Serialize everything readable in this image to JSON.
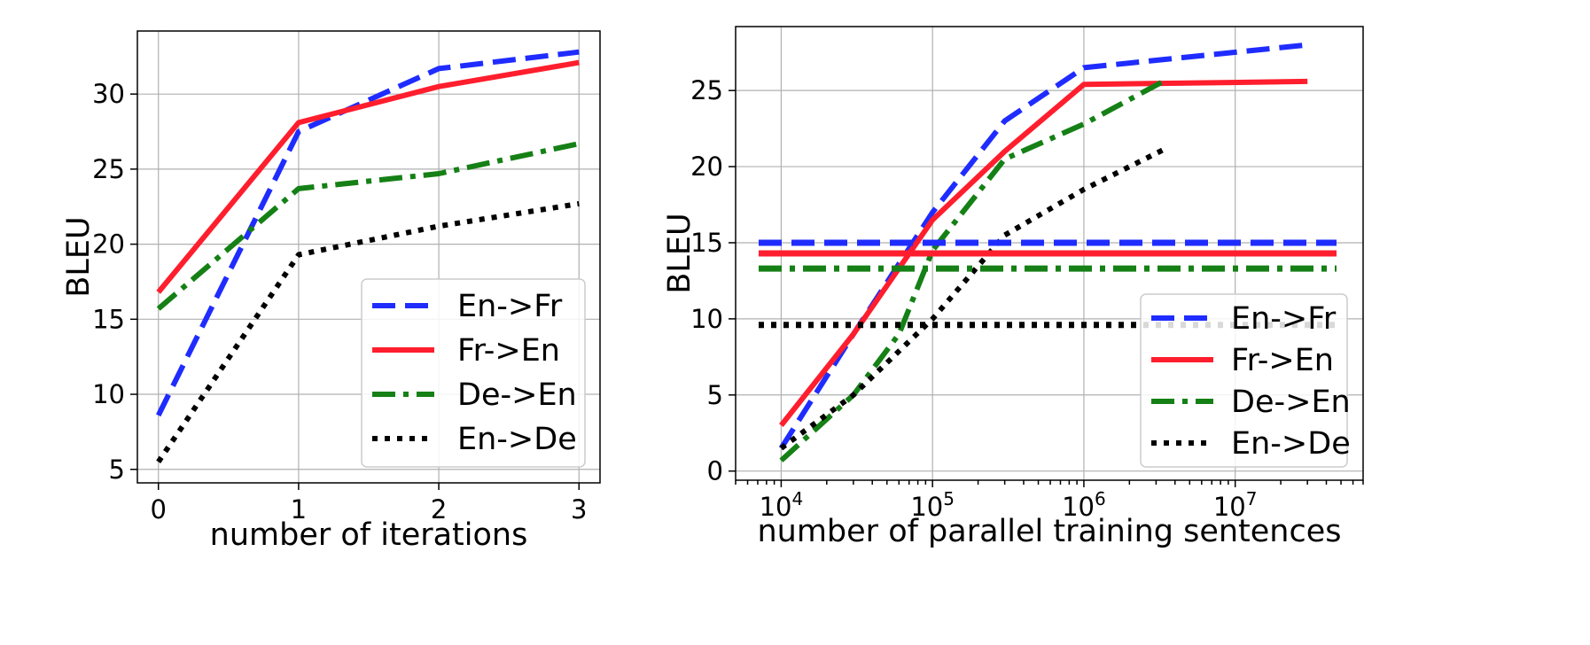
{
  "chart_data": [
    {
      "type": "line",
      "xlabel": "number of iterations",
      "ylabel": "BLEU",
      "x": [
        0,
        1,
        2,
        3
      ],
      "xlim": [
        -0.15,
        3.15
      ],
      "ylim": [
        4.1,
        34.2
      ],
      "xticks": [
        "0",
        "1",
        "2",
        "3"
      ],
      "yticks": [
        "5",
        "10",
        "15",
        "20",
        "25",
        "30"
      ],
      "grid": true,
      "legend_position": "lower-right",
      "series": [
        {
          "name": "En->Fr",
          "values": [
            8.6,
            27.5,
            31.7,
            32.8
          ],
          "color": "#1f2cff",
          "style": "dashed"
        },
        {
          "name": "Fr->En",
          "values": [
            16.8,
            28.1,
            30.5,
            32.1
          ],
          "color": "#ff1e2d",
          "style": "solid"
        },
        {
          "name": "De->En",
          "values": [
            15.7,
            23.7,
            24.7,
            26.7
          ],
          "color": "#158015",
          "style": "dashdot"
        },
        {
          "name": "En->De",
          "values": [
            5.5,
            19.3,
            21.2,
            22.7
          ],
          "color": "#000000",
          "style": "dotted"
        }
      ]
    },
    {
      "type": "line",
      "xlabel": "number of parallel training sentences",
      "ylabel": "BLEU",
      "xscale": "log",
      "xlim": [
        5000,
        70000000
      ],
      "ylim": [
        -0.6,
        29.2
      ],
      "xticks": [
        {
          "base": "10",
          "exp": "4"
        },
        {
          "base": "10",
          "exp": "5"
        },
        {
          "base": "10",
          "exp": "6"
        },
        {
          "base": "10",
          "exp": "7"
        }
      ],
      "yticks": [
        "0",
        "5",
        "10",
        "15",
        "20",
        "25"
      ],
      "grid": true,
      "legend_position": "lower-right",
      "series": [
        {
          "name": "En->Fr",
          "x": [
            10000,
            30000,
            100000,
            300000,
            1000000,
            30000000
          ],
          "values": [
            1.5,
            9.0,
            17.0,
            23.0,
            26.5,
            28.0
          ],
          "baseline": 15.0,
          "color": "#1f2cff",
          "style": "dashed"
        },
        {
          "name": "Fr->En",
          "x": [
            10000,
            30000,
            100000,
            300000,
            1000000,
            30000000
          ],
          "values": [
            3.0,
            9.0,
            16.5,
            21.0,
            25.4,
            25.6
          ],
          "baseline": 14.3,
          "color": "#ff1e2d",
          "style": "solid"
        },
        {
          "name": "De->En",
          "x": [
            10000,
            30000,
            60000,
            100000,
            300000,
            1000000,
            3500000
          ],
          "values": [
            0.7,
            5.0,
            9.0,
            14.5,
            20.5,
            22.8,
            25.7
          ],
          "baseline": 13.3,
          "color": "#158015",
          "style": "dashdot"
        },
        {
          "name": "En->De",
          "x": [
            10000,
            30000,
            100000,
            300000,
            1000000,
            3500000
          ],
          "values": [
            1.5,
            5.0,
            10.0,
            15.5,
            18.5,
            21.2
          ],
          "baseline": 9.6,
          "color": "#000000",
          "style": "dotted"
        }
      ]
    }
  ]
}
